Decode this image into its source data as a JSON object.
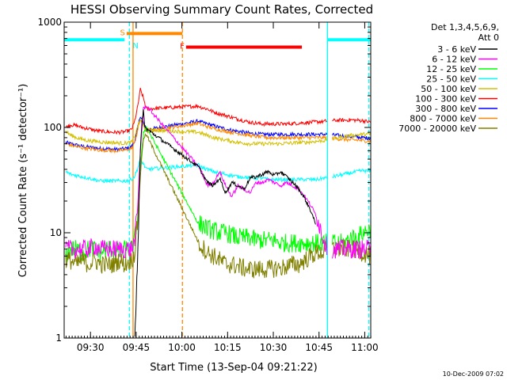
{
  "chart_data": {
    "type": "line",
    "title": "HESSI Observing Summary Count Rates, Corrected",
    "xlabel": "Start Time (13-Sep-04 09:21:22)",
    "ylabel": "Corrected Count Rate (s⁻¹ detector⁻¹)",
    "y_scale": "log",
    "ylim": [
      1,
      1000
    ],
    "xlim": [
      "09:21:22",
      "11:02:00"
    ],
    "x_unit": "minutes after 09:21:22",
    "xlim_minutes": [
      0,
      100.6
    ],
    "xticks": [
      {
        "label": "09:30",
        "t": 8.63
      },
      {
        "label": "09:45",
        "t": 23.63
      },
      {
        "label": "10:00",
        "t": 38.63
      },
      {
        "label": "10:15",
        "t": 53.63
      },
      {
        "label": "10:30",
        "t": 68.63
      },
      {
        "label": "10:45",
        "t": 83.63
      },
      {
        "label": "11:00",
        "t": 98.63
      }
    ],
    "yticks": [
      {
        "label": "1",
        "v": 1
      },
      {
        "label": "10",
        "v": 10
      },
      {
        "label": "100",
        "v": 100
      },
      {
        "label": "1000",
        "v": 1000
      }
    ],
    "legend_header": [
      "Det 1,3,4,5,6,9,",
      "Att 0"
    ],
    "legend_position": "right",
    "date_stamp": "10-Dec-2009 07:02",
    "gaps_minutes": [
      [
        38.8,
        44.0
      ],
      [
        86.4,
        88.0
      ]
    ],
    "series": [
      {
        "name": "3 - 6 keV",
        "color": "#000000",
        "x": [
          23.2,
          23.5,
          24.0,
          24.6,
          25.0,
          25.6,
          26.0,
          26.4,
          44.2,
          45,
          47,
          49,
          51,
          53,
          55,
          57,
          59,
          61,
          63,
          65,
          67,
          69,
          71,
          73,
          75,
          77,
          79,
          81,
          82.5
        ],
        "y": [
          1.2,
          2.0,
          5.0,
          20,
          60,
          120,
          150,
          100,
          42,
          38,
          30,
          28,
          33,
          24,
          30,
          28,
          26,
          33,
          34,
          36,
          38,
          35,
          38,
          34,
          30,
          26,
          21,
          16,
          12
        ]
      },
      {
        "name": "6 - 12 keV",
        "color": "#ff00ff",
        "x": [
          0.5,
          2,
          4,
          6,
          8,
          10,
          12,
          14,
          16,
          18,
          20,
          22,
          23,
          24,
          25,
          26,
          27,
          44.2,
          45,
          47,
          49,
          51,
          53,
          55,
          57,
          59,
          61,
          63,
          65,
          67,
          69,
          71,
          73,
          75,
          77,
          79,
          81,
          83,
          85,
          86.4,
          88,
          90,
          92,
          94,
          96,
          98,
          100.6
        ],
        "y": [
          7,
          7,
          7,
          7,
          7,
          7.5,
          7,
          7,
          7,
          7,
          7,
          7,
          8,
          15,
          60,
          150,
          160,
          42,
          38,
          28,
          30,
          38,
          28,
          22,
          28,
          26,
          24,
          30,
          30,
          32,
          30,
          28,
          30,
          28,
          26,
          22,
          18,
          14,
          9,
          7,
          7,
          7,
          7,
          7,
          7,
          7,
          7
        ]
      },
      {
        "name": "12 - 25 keV",
        "color": "#00ff00",
        "x": [
          0.5,
          2,
          4,
          6,
          8,
          10,
          12,
          14,
          16,
          18,
          20,
          22,
          23,
          24,
          25,
          26,
          27,
          44.2,
          45,
          47,
          49,
          51,
          53,
          55,
          57,
          59,
          61,
          63,
          65,
          67,
          69,
          71,
          73,
          75,
          77,
          79,
          81,
          83,
          85,
          86.4,
          88,
          90,
          92,
          94,
          96,
          98,
          100.6
        ],
        "y": [
          6,
          7,
          7,
          6.5,
          7,
          7,
          6.5,
          7,
          7,
          6.5,
          7,
          7,
          8,
          14,
          40,
          90,
          100,
          12,
          12,
          11,
          10.5,
          10,
          10,
          9.5,
          9,
          9,
          9,
          8.5,
          8.5,
          8.5,
          8.5,
          8,
          8,
          8,
          8,
          8,
          8,
          8,
          8,
          8,
          8,
          8,
          8,
          9,
          9,
          10,
          11
        ]
      },
      {
        "name": "25 - 50 keV",
        "color": "#00ffff",
        "x": [
          0.5,
          2,
          4,
          6,
          8,
          10,
          12,
          14,
          16,
          18,
          20,
          22,
          23,
          24,
          25,
          26,
          27,
          44.2,
          45,
          47,
          49,
          51,
          53,
          55,
          57,
          59,
          61,
          63,
          65,
          67,
          69,
          71,
          73,
          75,
          77,
          79,
          81,
          83,
          85,
          86.4,
          88,
          90,
          92,
          94,
          96,
          98,
          100.6
        ],
        "y": [
          38,
          36,
          35,
          34,
          33,
          32,
          31,
          31,
          31,
          31,
          31,
          32,
          34,
          40,
          50,
          45,
          40,
          44,
          42,
          40,
          38,
          37,
          36,
          35,
          34,
          34,
          33,
          33,
          33,
          32,
          32,
          32,
          32,
          32,
          32,
          32,
          32,
          32,
          33,
          33,
          34,
          35,
          36,
          37,
          38,
          39,
          38
        ]
      },
      {
        "name": "50 - 100 keV",
        "color": "#d4c000",
        "x": [
          0.5,
          2,
          4,
          6,
          8,
          10,
          12,
          14,
          16,
          18,
          20,
          22,
          23,
          24,
          25,
          26,
          27,
          44.2,
          45,
          47,
          49,
          51,
          53,
          55,
          57,
          59,
          61,
          63,
          65,
          67,
          69,
          71,
          73,
          75,
          77,
          79,
          81,
          83,
          85,
          86.4,
          88,
          90,
          92,
          94,
          96,
          98,
          100.6
        ],
        "y": [
          92,
          85,
          80,
          77,
          75,
          74,
          73,
          72,
          72,
          71,
          71,
          72,
          80,
          100,
          120,
          105,
          95,
          90,
          88,
          84,
          80,
          78,
          76,
          74,
          72,
          71,
          70,
          70,
          70,
          70,
          70,
          70,
          71,
          71,
          72,
          72,
          73,
          74,
          75,
          76,
          78,
          80,
          82,
          84,
          85,
          86,
          86
        ]
      },
      {
        "name": "100 - 300 keV",
        "color": "#ff0000",
        "x": [
          0.5,
          2,
          4,
          6,
          8,
          10,
          12,
          14,
          16,
          18,
          20,
          22,
          23,
          24,
          25,
          26,
          27,
          44.2,
          45,
          47,
          49,
          51,
          53,
          55,
          57,
          59,
          61,
          63,
          65,
          67,
          69,
          71,
          73,
          75,
          77,
          79,
          81,
          83,
          85,
          86.4,
          88,
          90,
          92,
          94,
          96,
          98,
          100.6
        ],
        "y": [
          100,
          106,
          104,
          100,
          97,
          94,
          92,
          91,
          90,
          90,
          91,
          95,
          110,
          150,
          230,
          190,
          150,
          160,
          155,
          150,
          140,
          135,
          130,
          125,
          120,
          116,
          112,
          110,
          108,
          108,
          108,
          108,
          108,
          109,
          110,
          111,
          112,
          113,
          114,
          115,
          116,
          117,
          117,
          118,
          117,
          116,
          112
        ]
      },
      {
        "name": "300 - 800 keV",
        "color": "#0000ff",
        "x": [
          0.5,
          2,
          4,
          6,
          8,
          10,
          12,
          14,
          16,
          18,
          20,
          22,
          23,
          24,
          25,
          26,
          27,
          44.2,
          45,
          47,
          49,
          51,
          53,
          55,
          57,
          59,
          61,
          63,
          65,
          67,
          69,
          71,
          73,
          75,
          77,
          79,
          81,
          83,
          85,
          86.4,
          88,
          90,
          92,
          94,
          96,
          98,
          100.6
        ],
        "y": [
          72,
          70,
          68,
          66,
          65,
          64,
          63,
          63,
          62,
          62,
          63,
          65,
          72,
          95,
          130,
          110,
          95,
          115,
          112,
          108,
          104,
          100,
          97,
          94,
          92,
          90,
          88,
          87,
          86,
          86,
          86,
          86,
          86,
          86,
          86,
          86,
          86,
          86,
          86,
          86,
          85,
          84,
          83,
          82,
          81,
          80,
          79
        ]
      },
      {
        "name": "800 - 7000 keV",
        "color": "#ff8800",
        "x": [
          0.5,
          2,
          4,
          6,
          8,
          10,
          12,
          14,
          16,
          18,
          20,
          22,
          23,
          24,
          25,
          26,
          27,
          44.2,
          45,
          47,
          49,
          51,
          53,
          55,
          57,
          59,
          61,
          63,
          65,
          67,
          69,
          71,
          73,
          75,
          77,
          79,
          81,
          83,
          85,
          86.4,
          88,
          90,
          92,
          94,
          96,
          98,
          100.6
        ],
        "y": [
          70,
          68,
          66,
          64,
          63,
          62,
          61,
          61,
          60,
          60,
          61,
          63,
          70,
          90,
          120,
          105,
          92,
          110,
          106,
          102,
          98,
          95,
          92,
          90,
          88,
          86,
          84,
          82,
          81,
          80,
          80,
          80,
          80,
          80,
          80,
          80,
          80,
          80,
          80,
          80,
          79,
          78,
          77,
          76,
          76,
          75,
          74
        ]
      },
      {
        "name": "7000 - 20000 keV",
        "color": "#808000",
        "x": [
          0.5,
          2,
          4,
          6,
          8,
          10,
          12,
          14,
          16,
          18,
          20,
          22,
          23,
          24,
          25,
          26,
          27,
          44.2,
          45,
          47,
          49,
          51,
          53,
          55,
          57,
          59,
          61,
          63,
          65,
          67,
          69,
          71,
          73,
          75,
          77,
          79,
          81,
          83,
          85,
          86.4,
          88,
          90,
          92,
          94,
          96,
          98,
          100.6
        ],
        "y": [
          5.5,
          5.5,
          5,
          5.5,
          5,
          5.5,
          5,
          5,
          5,
          5.5,
          5,
          5.5,
          6,
          12,
          35,
          80,
          85,
          8,
          7.5,
          6.5,
          6,
          5.5,
          5,
          5,
          4.8,
          4.6,
          4.5,
          4.5,
          4.5,
          4.5,
          4.6,
          4.6,
          4.8,
          5,
          5,
          5.5,
          6,
          6.5,
          6.5,
          7,
          7,
          7,
          7,
          7,
          6.8,
          6.5,
          6
        ]
      }
    ],
    "annotations": {
      "state_bars": [
        {
          "label": "",
          "color": "#00ffff",
          "t_start": 0,
          "t_end": 19.8,
          "v": 680
        },
        {
          "label": "S",
          "color": "#ff8800",
          "t_start": 20.5,
          "t_end": 38.8,
          "v": 780
        },
        {
          "label": "N",
          "color": "#00ffff",
          "t_start": 21.4,
          "t_end": 21.4,
          "v": 650
        },
        {
          "label": "F",
          "color": "#ff0000",
          "t_start": 40.0,
          "t_end": 78.0,
          "v": 580
        },
        {
          "label": "",
          "color": "#00ffff",
          "t_start": 86.4,
          "t_end": 100.6,
          "v": 680
        }
      ],
      "vlines": [
        {
          "t": 21.4,
          "color": "#00ffff",
          "style": "dashed"
        },
        {
          "t": 22.6,
          "color": "#ff8800",
          "style": "solid"
        },
        {
          "t": 38.8,
          "color": "#ff8800",
          "style": "dashed"
        },
        {
          "t": 86.4,
          "color": "#00ffff",
          "style": "solid"
        },
        {
          "t": 100.0,
          "color": "#00ffff",
          "style": "dashed"
        }
      ]
    }
  }
}
